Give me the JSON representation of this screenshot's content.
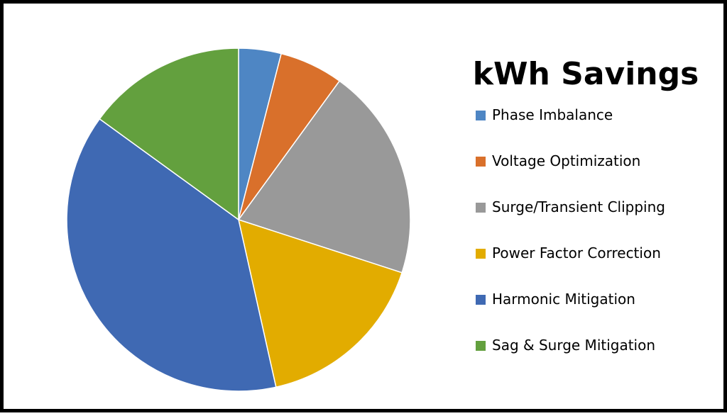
{
  "chart_data": {
    "type": "pie",
    "title": "kWh Savings",
    "categories": [
      "Phase Imbalance",
      "Voltage Optimization",
      "Surge/Transient Clipping",
      "Power Factor Correction",
      "Harmonic Mitigation",
      "Sag & Surge Mitigation"
    ],
    "values": [
      4,
      6,
      20,
      16.5,
      38.5,
      15
    ],
    "colors": [
      "#4E86C4",
      "#D9702B",
      "#999999",
      "#E2AC00",
      "#3F69B3",
      "#63A03E"
    ],
    "start_angle": "12 o'clock",
    "direction": "clockwise",
    "legend_position": "right"
  }
}
